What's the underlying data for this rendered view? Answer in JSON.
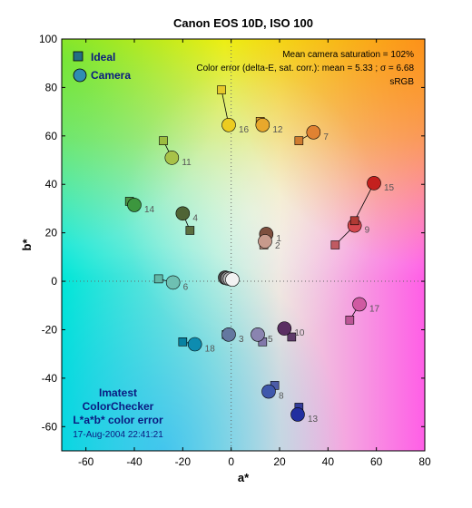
{
  "chart_data": {
    "type": "scatter",
    "title": "Canon EOS 10D, ISO 100",
    "xlabel": "a*",
    "ylabel": "b*",
    "xlim": [
      -70,
      80
    ],
    "ylim": [
      -70,
      100
    ],
    "xticks": [
      -60,
      -40,
      -20,
      0,
      20,
      40,
      60,
      80
    ],
    "yticks": [
      100,
      80,
      60,
      40,
      20,
      0,
      -20,
      -40,
      -60
    ],
    "legend": {
      "placement": "top-left",
      "ideal_label": "Ideal",
      "camera_label": "Camera"
    },
    "info_lines": [
      "Mean camera saturation = 102%",
      "Color error (delta-E, sat. corr.):  mean = 5.33 ;  σ = 6.68",
      "sRGB"
    ],
    "footer_lines": [
      "Imatest",
      "ColorChecker",
      "L*a*b* color error"
    ],
    "footer_date": "17-Aug-2004 22:41:21",
    "patches": [
      {
        "num": "1",
        "ideal": [
          14,
          18
        ],
        "camera": [
          14.5,
          19.5
        ],
        "ideal_color": "#7a5040",
        "camera_color": "#7e4f3e"
      },
      {
        "num": "2",
        "ideal": [
          13.5,
          15
        ],
        "camera": [
          14,
          16.5
        ],
        "ideal_color": "#c08d7c",
        "camera_color": "#c89a8c"
      },
      {
        "num": "3",
        "ideal": [
          -2,
          -22
        ],
        "camera": [
          -1,
          -22
        ],
        "ideal_color": "#607090",
        "camera_color": "#6478a0"
      },
      {
        "num": "4",
        "ideal": [
          -17,
          21
        ],
        "camera": [
          -20,
          28
        ],
        "ideal_color": "#5a6e40",
        "camera_color": "#4f6436"
      },
      {
        "num": "5",
        "ideal": [
          13,
          -25
        ],
        "camera": [
          11,
          -22
        ],
        "ideal_color": "#8278aa",
        "camera_color": "#8a84b0"
      },
      {
        "num": "6",
        "ideal": [
          -30,
          1
        ],
        "camera": [
          -24,
          -0.5
        ],
        "ideal_color": "#62b8a8",
        "camera_color": "#6ec0b2"
      },
      {
        "num": "7",
        "ideal": [
          28,
          58
        ],
        "camera": [
          34,
          61.5
        ],
        "ideal_color": "#d07c30",
        "camera_color": "#e08232"
      },
      {
        "num": "8",
        "ideal": [
          18,
          -43
        ],
        "camera": [
          15.5,
          -45.5
        ],
        "ideal_color": "#4c5ca8",
        "camera_color": "#3e58ac"
      },
      {
        "num": "9",
        "ideal": [
          43,
          15
        ],
        "camera": [
          51,
          23
        ],
        "ideal_color": "#c05a62",
        "camera_color": "#d4484e"
      },
      {
        "num": "10",
        "ideal": [
          25,
          -23
        ],
        "camera": [
          22,
          -19.5
        ],
        "ideal_color": "#5e3a6a",
        "camera_color": "#5a2e62"
      },
      {
        "num": "11",
        "ideal": [
          -28,
          58
        ],
        "camera": [
          -24.5,
          51
        ],
        "ideal_color": "#9cbc40",
        "camera_color": "#a8c248"
      },
      {
        "num": "12",
        "ideal": [
          12,
          66
        ],
        "camera": [
          13,
          64.5
        ],
        "ideal_color": "#e0a232",
        "camera_color": "#e8a82c"
      },
      {
        "num": "13",
        "ideal": [
          28,
          -52
        ],
        "camera": [
          27.5,
          -55
        ],
        "ideal_color": "#343c9a",
        "camera_color": "#222ea0"
      },
      {
        "num": "14",
        "ideal": [
          -42,
          33
        ],
        "camera": [
          -40,
          31.5
        ],
        "ideal_color": "#4c9646",
        "camera_color": "#3c963e"
      },
      {
        "num": "15",
        "ideal": [
          51,
          25
        ],
        "camera": [
          59,
          40.5
        ],
        "ideal_color": "#b03a34",
        "camera_color": "#c4201e"
      },
      {
        "num": "16",
        "ideal": [
          -4,
          79
        ],
        "camera": [
          -1,
          64.5
        ],
        "ideal_color": "#e6c82a",
        "camera_color": "#eccc20"
      },
      {
        "num": "17",
        "ideal": [
          49,
          -16
        ],
        "camera": [
          53,
          -9.5
        ],
        "ideal_color": "#bc5696",
        "camera_color": "#d05aa2"
      },
      {
        "num": "18",
        "ideal": [
          -20,
          -25
        ],
        "camera": [
          -15,
          -26
        ],
        "ideal_color": "#0882a2",
        "camera_color": "#0e8cb0"
      }
    ],
    "neutrals": [
      {
        "camera": [
          -2.5,
          1.5
        ],
        "camera_color": "#4a4a4a"
      },
      {
        "camera": [
          -1.5,
          1.2
        ],
        "camera_color": "#8a8a8a"
      },
      {
        "camera": [
          -0.5,
          1.0
        ],
        "camera_color": "#bdbdbd"
      },
      {
        "camera": [
          0.5,
          0.7
        ],
        "camera_color": "#f2f2f2"
      }
    ],
    "grid": false,
    "zero_lines": true
  },
  "colors": {
    "legend_ideal": "#236e84",
    "legend_camera": "#2f8cb2",
    "text_blue": "#0a1a80"
  }
}
